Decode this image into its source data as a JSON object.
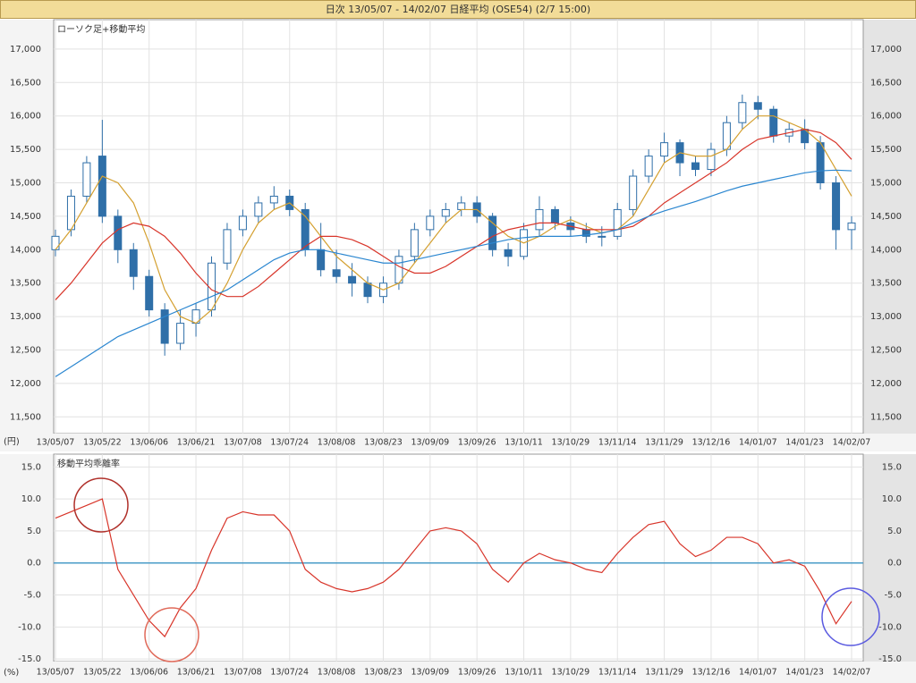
{
  "header": {
    "title": "日次 13/05/07 - 14/02/07  日経平均 (OSE54) (2/7 15:00)"
  },
  "chart_data": [
    {
      "type": "candlestick",
      "title": "ローソク足+移動平均",
      "y_unit": "(円)",
      "categories": [
        "13/05/07",
        null,
        null,
        "13/05/22",
        null,
        null,
        "13/06/06",
        null,
        null,
        "13/06/21",
        null,
        null,
        "13/07/08",
        null,
        null,
        "13/07/24",
        null,
        null,
        "13/08/08",
        null,
        null,
        "13/08/23",
        null,
        null,
        "13/09/09",
        null,
        null,
        "13/09/26",
        null,
        null,
        "13/10/11",
        null,
        null,
        "13/10/29",
        null,
        null,
        "13/11/14",
        null,
        null,
        "13/11/29",
        null,
        null,
        "13/12/16",
        null,
        null,
        "14/01/07",
        null,
        null,
        "14/01/23",
        null,
        null,
        "14/02/07"
      ],
      "open": [
        14000,
        14300,
        14800,
        15400,
        14500,
        14000,
        13600,
        13100,
        12600,
        12900,
        13100,
        13800,
        14300,
        14500,
        14700,
        14800,
        14600,
        14000,
        13700,
        13600,
        13500,
        13300,
        13500,
        13900,
        14300,
        14500,
        14600,
        14700,
        14500,
        14000,
        13900,
        14300,
        14600,
        14400,
        14300,
        14200,
        14200,
        14600,
        15100,
        15400,
        15600,
        15300,
        15200,
        15500,
        15900,
        16200,
        16100,
        15700,
        15800,
        15600,
        15000,
        14300
      ],
      "high": [
        14300,
        14900,
        15400,
        15942,
        14600,
        14100,
        13700,
        13200,
        13100,
        13200,
        13900,
        14400,
        14600,
        14800,
        14950,
        14900,
        14700,
        14400,
        14000,
        13800,
        13600,
        13600,
        14000,
        14400,
        14600,
        14700,
        14800,
        14800,
        14550,
        14100,
        14400,
        14800,
        14650,
        14500,
        14400,
        14350,
        14700,
        15200,
        15500,
        15750,
        15650,
        15400,
        15600,
        16000,
        16320,
        16300,
        16150,
        15900,
        15950,
        15700,
        15100,
        14500
      ],
      "low": [
        13900,
        14200,
        14700,
        14400,
        13800,
        13400,
        13000,
        12415,
        12500,
        12700,
        13000,
        13700,
        14200,
        14400,
        14600,
        14500,
        13900,
        13600,
        13500,
        13300,
        13200,
        13200,
        13400,
        13800,
        14200,
        14400,
        14500,
        14400,
        13900,
        13750,
        13850,
        14200,
        14300,
        14200,
        14100,
        14050,
        14150,
        14500,
        15000,
        15300,
        15100,
        15100,
        15100,
        15400,
        15800,
        15950,
        15600,
        15600,
        15500,
        14900,
        14000,
        14000
      ],
      "close": [
        14200,
        14800,
        15300,
        14500,
        14000,
        13600,
        13100,
        12600,
        12900,
        13100,
        13800,
        14300,
        14500,
        14700,
        14800,
        14600,
        14000,
        13700,
        13600,
        13500,
        13300,
        13500,
        13900,
        14300,
        14500,
        14600,
        14700,
        14500,
        14000,
        13900,
        14300,
        14600,
        14400,
        14300,
        14200,
        14200,
        14600,
        15100,
        15400,
        15600,
        15300,
        15200,
        15500,
        15900,
        16200,
        16100,
        15700,
        15800,
        15600,
        15000,
        14300,
        14400
      ],
      "color": "#2f6fa8",
      "series": [
        {
          "color": "#d4a030",
          "values": [
            14000,
            14300,
            14700,
            15100,
            15000,
            14700,
            14100,
            13400,
            13000,
            12900,
            13100,
            13500,
            14000,
            14400,
            14600,
            14700,
            14500,
            14200,
            13900,
            13700,
            13500,
            13400,
            13500,
            13800,
            14100,
            14400,
            14600,
            14600,
            14400,
            14200,
            14100,
            14200,
            14350,
            14450,
            14350,
            14250,
            14300,
            14500,
            14900,
            15300,
            15450,
            15400,
            15400,
            15500,
            15800,
            16000,
            16000,
            15900,
            15800,
            15600,
            15200,
            14800
          ]
        },
        {
          "color": "#d8352a",
          "values": [
            13250,
            13500,
            13800,
            14100,
            14300,
            14400,
            14350,
            14200,
            13950,
            13650,
            13400,
            13300,
            13300,
            13450,
            13650,
            13850,
            14050,
            14200,
            14200,
            14150,
            14050,
            13900,
            13750,
            13650,
            13650,
            13750,
            13900,
            14050,
            14200,
            14300,
            14350,
            14400,
            14400,
            14350,
            14300,
            14300,
            14300,
            14350,
            14500,
            14700,
            14850,
            15000,
            15150,
            15300,
            15500,
            15650,
            15700,
            15750,
            15800,
            15750,
            15600,
            15350
          ]
        },
        {
          "color": "#2a86d0",
          "values": [
            12100,
            12250,
            12400,
            12550,
            12700,
            12800,
            12900,
            13000,
            13100,
            13200,
            13300,
            13400,
            13550,
            13700,
            13850,
            13950,
            14000,
            14000,
            13950,
            13900,
            13850,
            13800,
            13800,
            13850,
            13900,
            13950,
            14000,
            14050,
            14100,
            14150,
            14180,
            14200,
            14200,
            14200,
            14220,
            14250,
            14300,
            14400,
            14500,
            14580,
            14650,
            14720,
            14800,
            14880,
            14950,
            15000,
            15050,
            15100,
            15150,
            15180,
            15190,
            15180
          ]
        }
      ],
      "ylim": [
        11250,
        17440
      ],
      "yticks": [
        {
          "value": 11500,
          "label": "11,500"
        },
        {
          "value": 12000,
          "label": "12,000"
        },
        {
          "value": 12500,
          "label": "12,500"
        },
        {
          "value": 13000,
          "label": "13,000"
        },
        {
          "value": 13500,
          "label": "13,500"
        },
        {
          "value": 14000,
          "label": "14,000"
        },
        {
          "value": 14500,
          "label": "14,500"
        },
        {
          "value": 15000,
          "label": "15,000"
        },
        {
          "value": 15500,
          "label": "15,500"
        },
        {
          "value": 16000,
          "label": "16,000"
        },
        {
          "value": 16500,
          "label": "16,500"
        },
        {
          "value": 17000,
          "label": "17,000"
        }
      ],
      "grid": true
    },
    {
      "type": "line",
      "title": "移動平均乖離率",
      "y_unit": "(%)",
      "categories": [
        "13/05/07",
        null,
        null,
        "13/05/22",
        null,
        null,
        "13/06/06",
        null,
        null,
        "13/06/21",
        null,
        null,
        "13/07/08",
        null,
        null,
        "13/07/24",
        null,
        null,
        "13/08/08",
        null,
        null,
        "13/08/23",
        null,
        null,
        "13/09/09",
        null,
        null,
        "13/09/26",
        null,
        null,
        "13/10/11",
        null,
        null,
        "13/10/29",
        null,
        null,
        "13/11/14",
        null,
        null,
        "13/11/29",
        null,
        null,
        "13/12/16",
        null,
        null,
        "14/01/07",
        null,
        null,
        "14/01/23",
        null,
        null,
        "14/02/07"
      ],
      "series": [
        {
          "color": "#d8352a",
          "values": [
            7,
            8,
            9,
            10,
            -1,
            -5,
            -9,
            -11.5,
            -7,
            -4,
            2,
            7,
            8,
            7.5,
            7.5,
            5,
            -1,
            -3,
            -4,
            -4.5,
            -4,
            -3,
            -1,
            2,
            5,
            5.5,
            5,
            3,
            -1,
            -3,
            0,
            1.5,
            0.5,
            0,
            -1,
            -1.5,
            1.5,
            4,
            6,
            6.5,
            3,
            1,
            2,
            4,
            4,
            3,
            0,
            0.5,
            -0.5,
            -4.5,
            -9.5,
            -6
          ]
        }
      ],
      "reference_line": {
        "value": 0,
        "color": "#4a9cc8"
      },
      "ylim": [
        -15.4,
        17
      ],
      "yticks": [
        {
          "value": 15,
          "label": "15.0"
        },
        {
          "value": 10,
          "label": "10.0"
        },
        {
          "value": 5,
          "label": "5.0"
        },
        {
          "value": 0,
          "label": "0.0"
        },
        {
          "value": -5,
          "label": "-5.0"
        },
        {
          "value": -10,
          "label": "-10.0"
        },
        {
          "value": -15,
          "label": "-15.0"
        }
      ],
      "grid": true
    }
  ]
}
